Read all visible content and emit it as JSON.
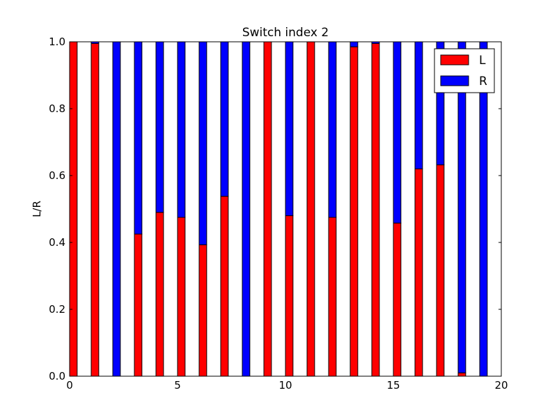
{
  "chart_data": {
    "type": "bar",
    "title": "Switch index 2",
    "xlabel": "",
    "ylabel": "L/R",
    "xlim": [
      0,
      20
    ],
    "ylim": [
      0,
      1
    ],
    "xticks": [
      "0",
      "5",
      "10",
      "15",
      "20"
    ],
    "yticks": [
      "0.0",
      "0.2",
      "0.4",
      "0.6",
      "0.8",
      "1.0"
    ],
    "stacked": true,
    "bar_width": 0.35,
    "x": [
      0,
      1,
      2,
      3,
      4,
      5,
      6,
      7,
      8,
      9,
      10,
      11,
      12,
      13,
      14,
      15,
      16,
      17,
      18,
      19
    ],
    "series": [
      {
        "name": "L",
        "color": "#ff0000",
        "values": [
          1.0,
          0.995,
          0.0,
          0.425,
          0.49,
          0.475,
          0.393,
          0.538,
          0.0,
          1.0,
          0.48,
          1.0,
          0.475,
          0.985,
          0.995,
          0.458,
          0.62,
          0.632,
          0.01,
          0.0
        ]
      },
      {
        "name": "R",
        "color": "#0000ff",
        "values": [
          0.0,
          0.005,
          1.0,
          0.575,
          0.51,
          0.525,
          0.607,
          0.462,
          1.0,
          0.0,
          0.52,
          0.0,
          0.525,
          0.015,
          0.005,
          0.542,
          0.38,
          0.368,
          0.99,
          1.0
        ]
      }
    ],
    "legend_position": "top-right"
  }
}
